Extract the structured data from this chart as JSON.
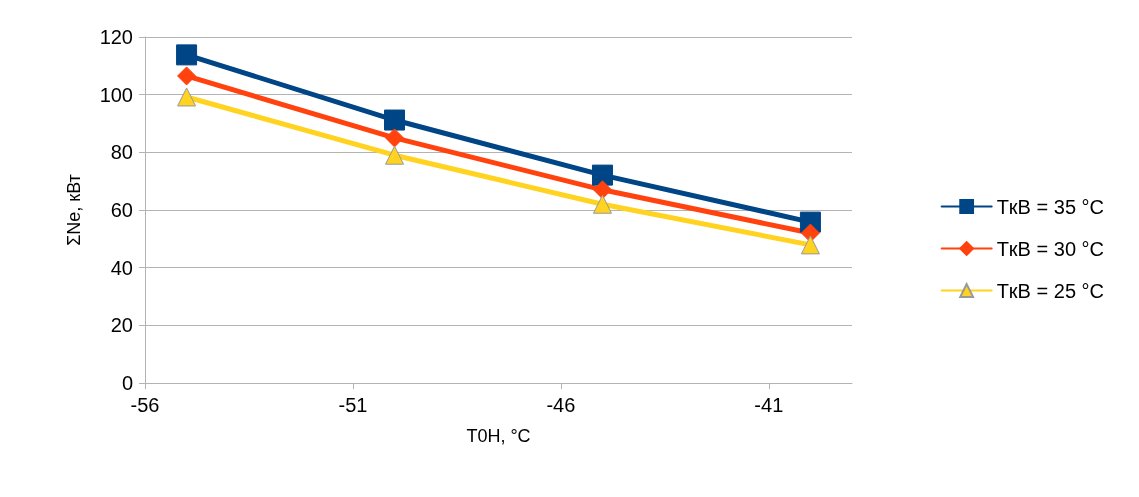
{
  "chart_data": {
    "type": "line",
    "xlabel": "T0H, °C",
    "ylabel": "ΣNe, кВт",
    "x": [
      -55,
      -50,
      -45,
      -40
    ],
    "series": [
      {
        "name": "TкВ = 35 °C",
        "color": "#004586",
        "marker": "square",
        "values": [
          113.8,
          91.2,
          72.1,
          55.8
        ]
      },
      {
        "name": "TкВ = 30 °C",
        "color": "#ff420e",
        "marker": "diamond",
        "values": [
          106.5,
          85,
          67,
          52
        ]
      },
      {
        "name": "TкВ = 25 °C",
        "color": "#ffd320",
        "marker": "triangle",
        "values": [
          99.2,
          79,
          62,
          47.9
        ]
      }
    ],
    "xlim": [
      -56,
      -39
    ],
    "xticks": [
      -56,
      -51,
      -46,
      -41
    ],
    "ylim": [
      0,
      120
    ],
    "yticks": [
      0,
      20,
      40,
      60,
      80,
      100,
      120
    ],
    "grid": "y",
    "legend": "right",
    "line_style": "solid"
  }
}
